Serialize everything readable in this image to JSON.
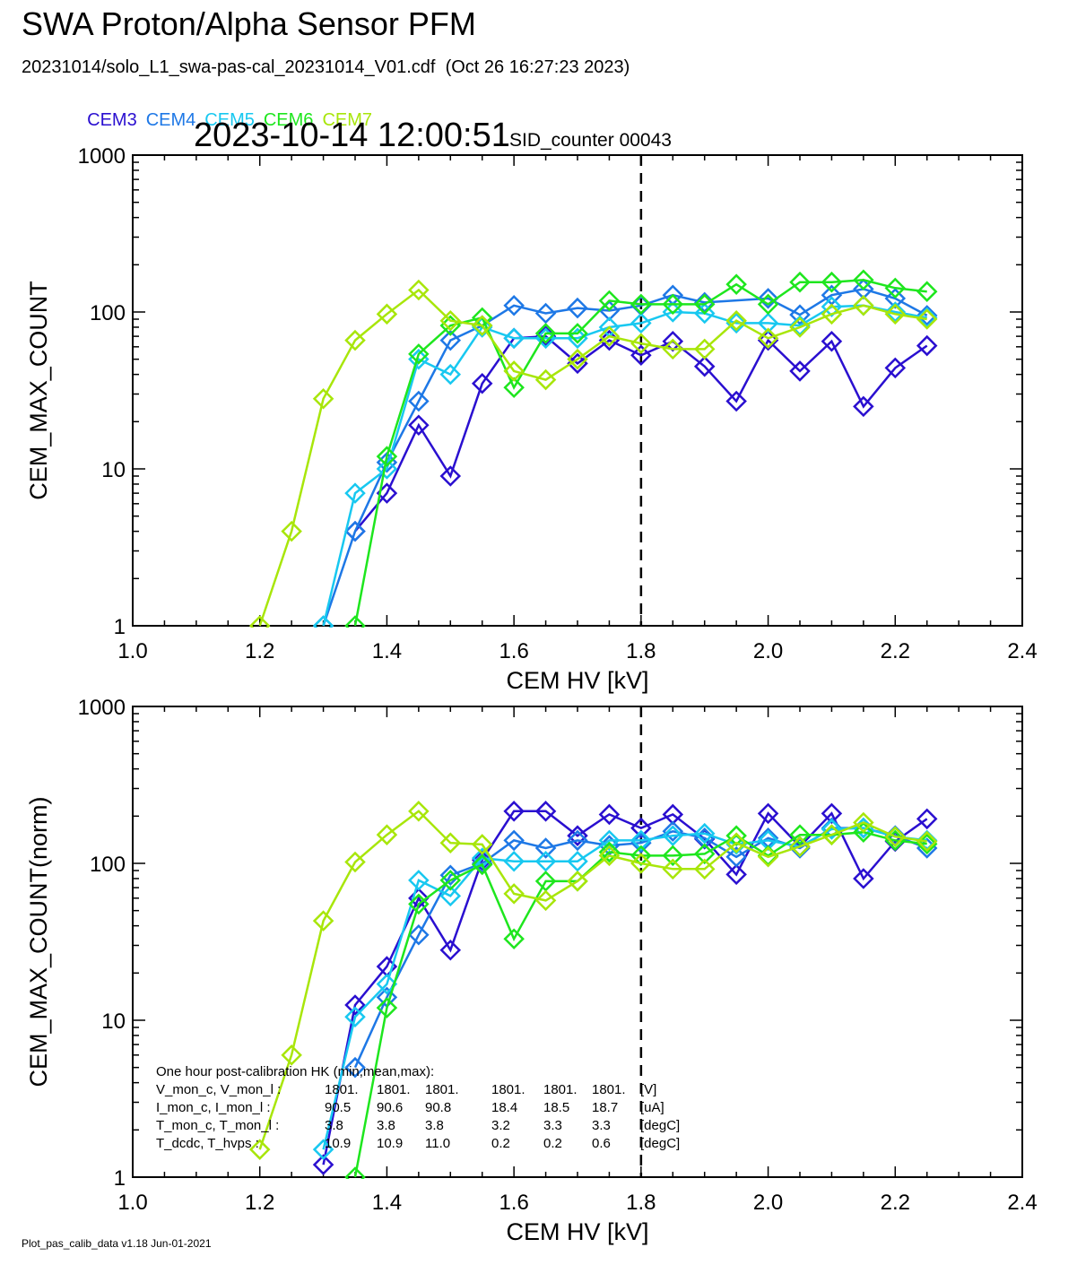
{
  "header": {
    "title": "SWA Proton/Alpha Sensor PFM",
    "subtitle": "20231014/solo_L1_swa-pas-cal_20231014_V01.cdf  (Oct 26 16:27:23 2023)",
    "timestamp": "2023-10-14 12:00:51",
    "sid_counter": "SID_counter 00043"
  },
  "legend": [
    {
      "name": "CEM3",
      "color": "#2a0fd0"
    },
    {
      "name": "CEM4",
      "color": "#1e78e6"
    },
    {
      "name": "CEM5",
      "color": "#18c8f0"
    },
    {
      "name": "CEM6",
      "color": "#1ee61e"
    },
    {
      "name": "CEM7",
      "color": "#a8e60a"
    }
  ],
  "footer": "Plot_pas_calib_data v1.18 Jun-01-2021",
  "chart_data": [
    {
      "type": "line",
      "xlabel": "CEM HV [kV]",
      "ylabel": "CEM_MAX_COUNT",
      "xlim": [
        1.0,
        2.4
      ],
      "ylim": [
        1,
        1000
      ],
      "yscale": "log",
      "xticks": [
        "1.0",
        "1.2",
        "1.4",
        "1.6",
        "1.8",
        "2.0",
        "2.2",
        "2.4"
      ],
      "yticks": [
        "1",
        "10",
        "100",
        "1000"
      ],
      "marker": "diamond",
      "reference_line_x": 1.8,
      "series": [
        {
          "name": "CEM3",
          "color": "#2a0fd0",
          "x": [
            1.35,
            1.4,
            1.45,
            1.5,
            1.55,
            1.6,
            1.65,
            1.7,
            1.75,
            1.8,
            1.85,
            1.9,
            1.95,
            2.0,
            2.05,
            2.1,
            2.15,
            2.2,
            2.25
          ],
          "y": [
            4,
            7,
            19,
            9,
            35,
            68,
            70,
            47,
            66,
            53,
            65,
            45,
            27,
            66,
            42,
            65,
            25,
            44,
            61
          ]
        },
        {
          "name": "CEM4",
          "color": "#1e78e6",
          "x": [
            1.3,
            1.35,
            1.4,
            1.45,
            1.5,
            1.55,
            1.6,
            1.65,
            1.7,
            1.75,
            1.8,
            1.85,
            1.9,
            2.0,
            2.05,
            2.1,
            2.15,
            2.2,
            2.25
          ],
          "y": [
            1,
            4,
            11,
            27,
            66,
            82,
            110,
            98,
            106,
            102,
            110,
            128,
            115,
            122,
            96,
            128,
            140,
            122,
            95
          ]
        },
        {
          "name": "CEM5",
          "color": "#18c8f0",
          "x": [
            1.3,
            1.35,
            1.4,
            1.45,
            1.5,
            1.55,
            1.6,
            1.65,
            1.7,
            1.75,
            1.8,
            1.85,
            1.9,
            1.95,
            2.0,
            2.05,
            2.1,
            2.15,
            2.2,
            2.25
          ],
          "y": [
            1,
            7,
            10,
            50,
            40,
            80,
            68,
            68,
            68,
            80,
            85,
            100,
            98,
            85,
            85,
            82,
            108,
            110,
            100,
            92
          ]
        },
        {
          "name": "CEM6",
          "color": "#1ee61e",
          "x": [
            1.35,
            1.4,
            1.45,
            1.5,
            1.55,
            1.6,
            1.65,
            1.7,
            1.75,
            1.8,
            1.85,
            1.9,
            1.95,
            2.0,
            2.05,
            2.1,
            2.15,
            2.2,
            2.25
          ],
          "y": [
            1,
            12,
            54,
            82,
            92,
            33,
            73,
            73,
            118,
            112,
            112,
            112,
            150,
            112,
            155,
            155,
            160,
            142,
            135
          ]
        },
        {
          "name": "CEM7",
          "color": "#a8e60a",
          "x": [
            1.2,
            1.25,
            1.3,
            1.35,
            1.4,
            1.45,
            1.5,
            1.55,
            1.6,
            1.65,
            1.7,
            1.75,
            1.8,
            1.85,
            1.9,
            1.95,
            2.0,
            2.05,
            2.1,
            2.15,
            2.2,
            2.25
          ],
          "y": [
            1,
            4,
            28,
            66,
            97,
            138,
            88,
            82,
            42,
            37,
            50,
            70,
            63,
            58,
            58,
            88,
            68,
            80,
            97,
            110,
            97,
            90
          ]
        }
      ]
    },
    {
      "type": "line",
      "xlabel": "CEM HV [kV]",
      "ylabel": "CEM_MAX_COUNT(norm)",
      "xlim": [
        1.0,
        2.4
      ],
      "ylim": [
        1,
        1000
      ],
      "yscale": "log",
      "xticks": [
        "1.0",
        "1.2",
        "1.4",
        "1.6",
        "1.8",
        "2.0",
        "2.2",
        "2.4"
      ],
      "yticks": [
        "1",
        "10",
        "100",
        "1000"
      ],
      "marker": "diamond",
      "reference_line_x": 1.8,
      "series": [
        {
          "name": "CEM3",
          "color": "#2a0fd0",
          "x": [
            1.3,
            1.35,
            1.4,
            1.45,
            1.5,
            1.55,
            1.6,
            1.65,
            1.7,
            1.75,
            1.8,
            1.85,
            1.9,
            1.95,
            2.0,
            2.05,
            2.1,
            2.15,
            2.2,
            2.25
          ],
          "y": [
            1.2,
            12.5,
            22,
            60,
            28,
            105,
            215,
            215,
            150,
            205,
            168,
            205,
            143,
            85,
            208,
            128,
            208,
            80,
            138,
            192
          ]
        },
        {
          "name": "CEM4",
          "color": "#1e78e6",
          "x": [
            1.35,
            1.4,
            1.45,
            1.5,
            1.55,
            1.6,
            1.65,
            1.7,
            1.75,
            1.8,
            1.85,
            1.9,
            1.95,
            2.0,
            2.05,
            2.1,
            2.15,
            2.2,
            2.25
          ],
          "y": [
            5,
            14,
            35,
            84,
            100,
            140,
            125,
            140,
            130,
            135,
            160,
            145,
            110,
            145,
            125,
            168,
            168,
            150,
            125
          ]
        },
        {
          "name": "CEM5",
          "color": "#18c8f0",
          "x": [
            1.3,
            1.35,
            1.4,
            1.45,
            1.5,
            1.55,
            1.6,
            1.65,
            1.7,
            1.75,
            1.8,
            1.85,
            1.9,
            1.95,
            2.0,
            2.05,
            2.1,
            2.15,
            2.2,
            2.25
          ],
          "y": [
            1.5,
            10.5,
            17,
            78,
            62,
            108,
            103,
            103,
            103,
            140,
            140,
            150,
            155,
            132,
            140,
            128,
            165,
            168,
            148,
            140
          ]
        },
        {
          "name": "CEM6",
          "color": "#1ee61e",
          "x": [
            1.35,
            1.4,
            1.45,
            1.5,
            1.55,
            1.6,
            1.65,
            1.7,
            1.75,
            1.8,
            1.85,
            1.9,
            1.95,
            2.0,
            2.05,
            2.1,
            2.15,
            2.2,
            2.25
          ],
          "y": [
            1,
            12,
            55,
            78,
            98,
            33,
            77,
            77,
            118,
            112,
            112,
            115,
            150,
            112,
            152,
            152,
            158,
            140,
            133
          ]
        },
        {
          "name": "CEM7",
          "color": "#a8e60a",
          "x": [
            1.2,
            1.25,
            1.3,
            1.35,
            1.4,
            1.45,
            1.5,
            1.55,
            1.6,
            1.65,
            1.7,
            1.75,
            1.8,
            1.85,
            1.9,
            1.95,
            2.0,
            2.05,
            2.1,
            2.15,
            2.2,
            2.25
          ],
          "y": [
            1.5,
            6,
            43,
            102,
            152,
            215,
            135,
            132,
            64,
            58,
            77,
            112,
            100,
            92,
            92,
            135,
            110,
            128,
            152,
            182,
            148,
            138
          ]
        }
      ],
      "annotation": {
        "heading": "One hour post-calibration HK (min,mean,max):",
        "rows": [
          {
            "label": "V_mon_c, V_mon_l :",
            "c": [
              "1801.",
              "1801.",
              "1801."
            ],
            "l": [
              "1801.",
              "1801.",
              "1801."
            ],
            "unit": "[V]"
          },
          {
            "label": "I_mon_c,  I_mon_l :",
            "c": [
              "90.5",
              "90.6",
              "90.8"
            ],
            "l": [
              "18.4",
              "18.5",
              "18.7"
            ],
            "unit": "[uA]"
          },
          {
            "label": "T_mon_c, T_mon_l :",
            "c": [
              "3.8",
              "3.8",
              "3.8"
            ],
            "l": [
              "3.2",
              "3.3",
              "3.3"
            ],
            "unit": "[degC]"
          },
          {
            "label": "T_dcdc,    T_hvps :",
            "c": [
              "10.9",
              "10.9",
              "11.0"
            ],
            "l": [
              "0.2",
              "0.2",
              "0.6"
            ],
            "unit": "[degC]"
          }
        ]
      }
    }
  ]
}
